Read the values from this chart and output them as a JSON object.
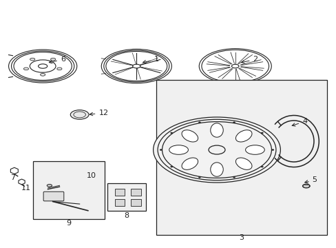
{
  "background_color": "#ffffff",
  "fig_width": 4.89,
  "fig_height": 3.6,
  "dpi": 100,
  "line_color": "#222222",
  "label_color": "#222222",
  "font_size": 8
}
